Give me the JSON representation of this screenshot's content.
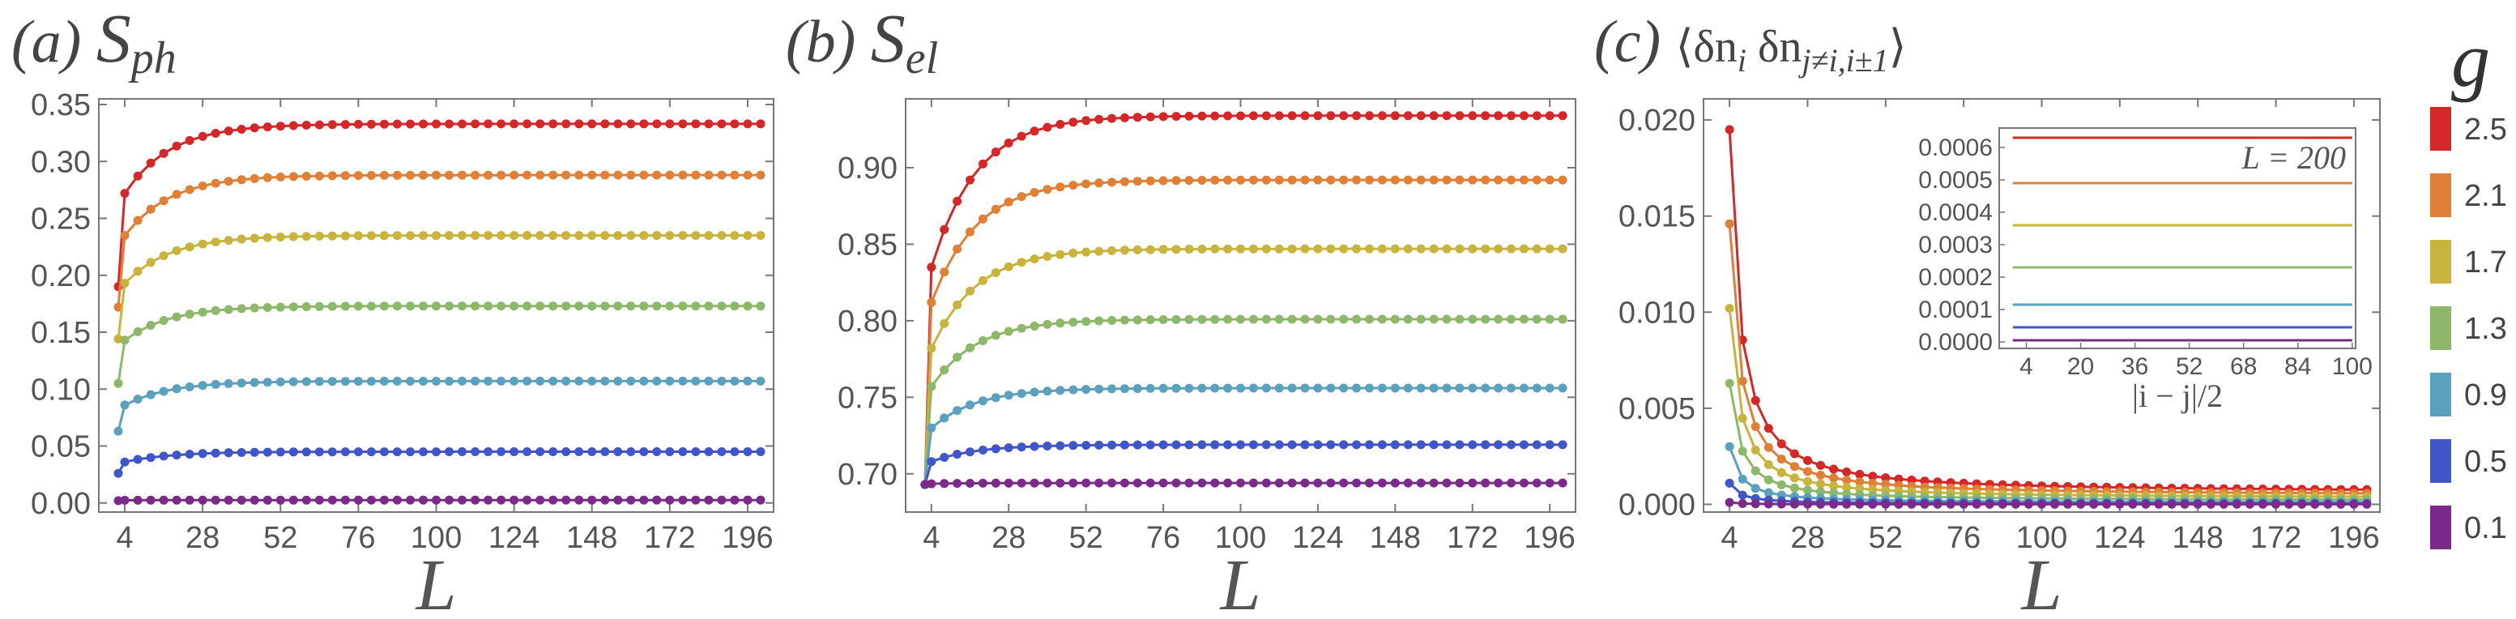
{
  "chart_data": [
    {
      "type": "line",
      "panel_letter": "(a)",
      "title_main": "S",
      "title_sub": "ph",
      "xlabel": "L",
      "ylabel": "",
      "x_ticks": [
        4,
        28,
        52,
        76,
        100,
        124,
        148,
        172,
        196
      ],
      "y_ticks": [
        "0.00",
        "0.05",
        "0.10",
        "0.15",
        "0.20",
        "0.25",
        "0.30",
        "0.35"
      ],
      "xlim": [
        -4,
        204
      ],
      "ylim": [
        -0.008,
        0.355
      ],
      "x": [
        2,
        4,
        8,
        12,
        16,
        20,
        24,
        28,
        32,
        36,
        40,
        44,
        48,
        52,
        56,
        60,
        64,
        68,
        72,
        76,
        80,
        84,
        88,
        92,
        96,
        100,
        104,
        108,
        112,
        116,
        120,
        124,
        128,
        132,
        136,
        140,
        144,
        148,
        152,
        156,
        160,
        164,
        168,
        172,
        176,
        180,
        184,
        188,
        192,
        196,
        200
      ],
      "series": [
        {
          "g": "2.5",
          "color": "#d62728",
          "limit": 0.333,
          "start": 0.19,
          "second": 0.272
        },
        {
          "g": "2.1",
          "color": "#e07f35",
          "limit": 0.288,
          "start": 0.172,
          "second": 0.235
        },
        {
          "g": "1.7",
          "color": "#c8b43c",
          "limit": 0.235,
          "start": 0.144,
          "second": 0.193
        },
        {
          "g": "1.3",
          "color": "#8db86a",
          "limit": 0.173,
          "start": 0.105,
          "second": 0.143
        },
        {
          "g": "0.9",
          "color": "#5ba0bd",
          "limit": 0.107,
          "start": 0.063,
          "second": 0.086
        },
        {
          "g": "0.5",
          "color": "#3f55c8",
          "limit": 0.045,
          "start": 0.026,
          "second": 0.036
        },
        {
          "g": "0.1",
          "color": "#7b2a8a",
          "limit": 0.0025,
          "start": 0.002,
          "second": 0.0024
        }
      ]
    },
    {
      "type": "line",
      "panel_letter": "(b)",
      "title_main": "S",
      "title_sub": "el",
      "xlabel": "L",
      "ylabel": "",
      "x_ticks": [
        4,
        28,
        52,
        76,
        100,
        124,
        148,
        172,
        196
      ],
      "y_ticks": [
        "0.70",
        "0.75",
        "0.80",
        "0.85",
        "0.90"
      ],
      "xlim": [
        -4,
        204
      ],
      "ylim": [
        0.675,
        0.945
      ],
      "x": [
        2,
        4,
        8,
        12,
        16,
        20,
        24,
        28,
        32,
        36,
        40,
        44,
        48,
        52,
        56,
        60,
        64,
        68,
        72,
        76,
        80,
        84,
        88,
        92,
        96,
        100,
        104,
        108,
        112,
        116,
        120,
        124,
        128,
        132,
        136,
        140,
        144,
        148,
        152,
        156,
        160,
        164,
        168,
        172,
        176,
        180,
        184,
        188,
        192,
        196,
        200
      ],
      "series": [
        {
          "g": "2.5",
          "color": "#d62728",
          "limit": 0.934,
          "start": 0.693,
          "second": 0.835
        },
        {
          "g": "2.1",
          "color": "#e07f35",
          "limit": 0.892,
          "start": 0.693,
          "second": 0.812
        },
        {
          "g": "1.7",
          "color": "#c8b43c",
          "limit": 0.847,
          "start": 0.693,
          "second": 0.782
        },
        {
          "g": "1.3",
          "color": "#8db86a",
          "limit": 0.801,
          "start": 0.693,
          "second": 0.757
        },
        {
          "g": "0.9",
          "color": "#5ba0bd",
          "limit": 0.756,
          "start": 0.693,
          "second": 0.73
        },
        {
          "g": "0.5",
          "color": "#3f55c8",
          "limit": 0.719,
          "start": 0.693,
          "second": 0.708
        },
        {
          "g": "0.1",
          "color": "#7b2a8a",
          "limit": 0.694,
          "start": 0.693,
          "second": 0.6935
        }
      ]
    },
    {
      "type": "line",
      "panel_letter": "(c)",
      "title_text": "⟨δn",
      "title_sub1": "i",
      "title_mid": " δn",
      "title_sub2": "j≠i,i±1",
      "title_end": "⟩",
      "xlabel": "L",
      "ylabel": "",
      "x_ticks": [
        4,
        28,
        52,
        76,
        100,
        124,
        148,
        172,
        196
      ],
      "y_ticks": [
        "0.000",
        "0.005",
        "0.010",
        "0.015",
        "0.020"
      ],
      "xlim": [
        -4,
        204
      ],
      "ylim": [
        -0.0004,
        0.0211
      ],
      "x": [
        4,
        8,
        12,
        16,
        20,
        24,
        28,
        32,
        36,
        40,
        44,
        48,
        52,
        56,
        60,
        64,
        68,
        72,
        76,
        80,
        84,
        88,
        92,
        96,
        100,
        104,
        108,
        112,
        116,
        120,
        124,
        128,
        132,
        136,
        140,
        144,
        148,
        152,
        156,
        160,
        164,
        168,
        172,
        176,
        180,
        184,
        188,
        192,
        196,
        200
      ],
      "series": [
        {
          "g": "2.5",
          "color": "#d62728",
          "amplitude": 0.0195
        },
        {
          "g": "2.1",
          "color": "#e07f35",
          "amplitude": 0.0146
        },
        {
          "g": "1.7",
          "color": "#c8b43c",
          "amplitude": 0.0102
        },
        {
          "g": "1.3",
          "color": "#8db86a",
          "amplitude": 0.0063
        },
        {
          "g": "0.9",
          "color": "#5ba0bd",
          "amplitude": 0.003
        },
        {
          "g": "0.5",
          "color": "#3f55c8",
          "amplitude": 0.0011
        },
        {
          "g": "0.1",
          "color": "#7b2a8a",
          "amplitude": 0.0001
        }
      ],
      "inset": {
        "annotation": "L = 200",
        "xlabel": "|i − j|/2",
        "x_ticks": [
          4,
          20,
          36,
          52,
          68,
          84,
          100
        ],
        "y_ticks": [
          "0.0000",
          "0.0001",
          "0.0002",
          "0.0003",
          "0.0004",
          "0.0005",
          "0.0006"
        ],
        "xlim": [
          -4,
          101
        ],
        "ylim": [
          -2e-05,
          0.00066
        ],
        "levels": [
          {
            "g": "2.5",
            "color": "#d62728",
            "value": 0.00063
          },
          {
            "g": "2.1",
            "color": "#e07f35",
            "value": 0.00049
          },
          {
            "g": "1.7",
            "color": "#c8b43c",
            "value": 0.00036
          },
          {
            "g": "1.3",
            "color": "#8db86a",
            "value": 0.00023
          },
          {
            "g": "0.9",
            "color": "#5ba0bd",
            "value": 0.000115
          },
          {
            "g": "0.5",
            "color": "#3f55c8",
            "value": 4.5e-05
          },
          {
            "g": "0.1",
            "color": "#7b2a8a",
            "value": 5e-06
          }
        ]
      }
    }
  ],
  "legend": {
    "title": "g",
    "entries": [
      {
        "label": "2.5",
        "color": "#d62728"
      },
      {
        "label": "2.1",
        "color": "#e07f35"
      },
      {
        "label": "1.7",
        "color": "#c8b43c"
      },
      {
        "label": "1.3",
        "color": "#8db86a"
      },
      {
        "label": "0.9",
        "color": "#5ba0bd"
      },
      {
        "label": "0.5",
        "color": "#3f55c8"
      },
      {
        "label": "0.1",
        "color": "#7b2a8a"
      }
    ]
  }
}
